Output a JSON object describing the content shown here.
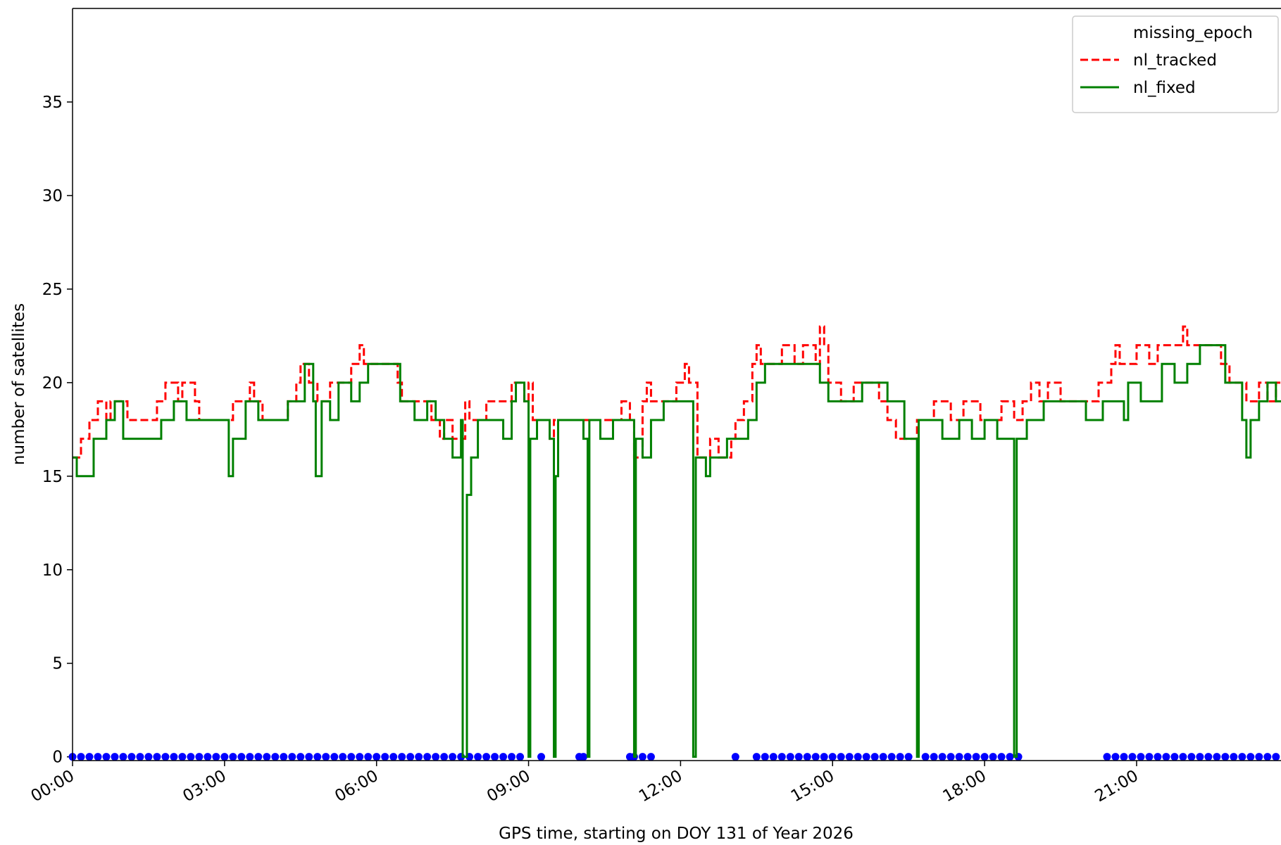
{
  "chart_data": {
    "type": "line",
    "x_label": "GPS time, starting on DOY 131 of Year 2026",
    "y_label": "number of satellites",
    "xlim": [
      "00:00",
      "23:51"
    ],
    "xticks": [
      "00:00",
      "03:00",
      "06:00",
      "09:00",
      "12:00",
      "15:00",
      "18:00",
      "21:00"
    ],
    "ylim": [
      -0.2,
      40
    ],
    "yticks": [
      0,
      5,
      10,
      15,
      20,
      25,
      30,
      35
    ],
    "legend": "upper right",
    "series": [
      {
        "name": "missing_epoch",
        "color": "#0000ff",
        "kind": "scatter",
        "x": [
          "00:00",
          "00:10",
          "00:20",
          "00:30",
          "00:40",
          "00:50",
          "01:00",
          "01:10",
          "01:20",
          "01:30",
          "01:40",
          "01:50",
          "02:00",
          "02:10",
          "02:20",
          "02:30",
          "02:40",
          "02:50",
          "03:00",
          "03:10",
          "03:20",
          "03:30",
          "03:40",
          "03:50",
          "04:00",
          "04:10",
          "04:20",
          "04:30",
          "04:40",
          "04:50",
          "05:00",
          "05:10",
          "05:20",
          "05:30",
          "05:40",
          "05:50",
          "06:00",
          "06:10",
          "06:20",
          "06:30",
          "06:40",
          "06:50",
          "07:00",
          "07:10",
          "07:20",
          "07:30",
          "07:40",
          "07:50",
          "08:00",
          "08:10",
          "08:20",
          "08:30",
          "08:40",
          "08:50",
          "09:15",
          "10:00",
          "10:05",
          "11:00",
          "11:05",
          "11:15",
          "11:25",
          "13:05",
          "13:30",
          "13:40",
          "13:50",
          "14:00",
          "14:10",
          "14:20",
          "14:30",
          "14:40",
          "14:50",
          "15:00",
          "15:10",
          "15:20",
          "15:30",
          "15:40",
          "15:50",
          "16:00",
          "16:10",
          "16:20",
          "16:30",
          "16:50",
          "17:00",
          "17:10",
          "17:20",
          "17:30",
          "17:40",
          "17:50",
          "18:00",
          "18:10",
          "18:20",
          "18:30",
          "18:40",
          "20:25",
          "20:35",
          "20:45",
          "20:55",
          "21:05",
          "21:15",
          "21:25",
          "21:35",
          "21:45",
          "21:55",
          "22:05",
          "22:15",
          "22:25",
          "22:35",
          "22:45",
          "22:55",
          "23:05",
          "23:15",
          "23:25",
          "23:35",
          "23:45"
        ],
        "values": [
          0,
          0,
          0,
          0,
          0,
          0,
          0,
          0,
          0,
          0,
          0,
          0,
          0,
          0,
          0,
          0,
          0,
          0,
          0,
          0,
          0,
          0,
          0,
          0,
          0,
          0,
          0,
          0,
          0,
          0,
          0,
          0,
          0,
          0,
          0,
          0,
          0,
          0,
          0,
          0,
          0,
          0,
          0,
          0,
          0,
          0,
          0,
          0,
          0,
          0,
          0,
          0,
          0,
          0,
          0,
          0,
          0,
          0,
          0,
          0,
          0,
          0,
          0,
          0,
          0,
          0,
          0,
          0,
          0,
          0,
          0,
          0,
          0,
          0,
          0,
          0,
          0,
          0,
          0,
          0,
          0,
          0,
          0,
          0,
          0,
          0,
          0,
          0,
          0,
          0,
          0,
          0,
          0,
          0,
          0,
          0,
          0,
          0,
          0,
          0,
          0,
          0,
          0,
          0,
          0,
          0,
          0,
          0,
          0,
          0,
          0,
          0,
          0,
          0
        ]
      },
      {
        "name": "nl_tracked",
        "color": "#ff0000",
        "kind": "step",
        "dashed": true,
        "x": [
          "00:00",
          "00:10",
          "00:20",
          "00:30",
          "00:40",
          "00:45",
          "01:05",
          "01:40",
          "01:50",
          "02:05",
          "02:10",
          "02:25",
          "02:30",
          "03:00",
          "03:10",
          "03:30",
          "03:35",
          "03:45",
          "04:15",
          "04:25",
          "04:30",
          "04:40",
          "04:50",
          "05:05",
          "05:30",
          "05:40",
          "05:45",
          "06:25",
          "06:30",
          "06:45",
          "07:05",
          "07:15",
          "07:20",
          "07:30",
          "07:45",
          "07:50",
          "08:10",
          "08:40",
          "08:55",
          "09:00",
          "09:05",
          "09:25",
          "09:30",
          "10:00",
          "10:10",
          "10:30",
          "10:50",
          "11:00",
          "11:05",
          "11:15",
          "11:20",
          "11:25",
          "11:55",
          "12:05",
          "12:10",
          "12:20",
          "12:35",
          "12:45",
          "13:00",
          "13:05",
          "13:15",
          "13:25",
          "13:30",
          "13:35",
          "14:00",
          "14:15",
          "14:25",
          "14:40",
          "14:45",
          "14:50",
          "14:55",
          "15:10",
          "15:25",
          "15:40",
          "15:55",
          "16:05",
          "16:15",
          "16:40",
          "16:45",
          "17:00",
          "17:20",
          "17:35",
          "17:55",
          "18:20",
          "18:35",
          "18:45",
          "18:55",
          "19:05",
          "19:15",
          "19:30",
          "20:00",
          "20:15",
          "20:30",
          "20:35",
          "20:40",
          "21:00",
          "21:15",
          "21:25",
          "21:45",
          "21:55",
          "22:00",
          "22:40",
          "22:50",
          "23:10",
          "23:25",
          "23:35",
          "23:45"
        ],
        "values": [
          16,
          17,
          18,
          19,
          18,
          19,
          18,
          19,
          20,
          19,
          20,
          19,
          18,
          18,
          19,
          20,
          19,
          18,
          19,
          20,
          21,
          20,
          19,
          20,
          21,
          22,
          21,
          20,
          19,
          19,
          18,
          17,
          18,
          17,
          19,
          18,
          19,
          20,
          19,
          20,
          18,
          17,
          18,
          18,
          18,
          18,
          19,
          18,
          16,
          19,
          20,
          19,
          20,
          21,
          20,
          16,
          17,
          16,
          17,
          18,
          19,
          21,
          22,
          21,
          22,
          21,
          22,
          21,
          23,
          22,
          20,
          19,
          20,
          20,
          19,
          18,
          17,
          18,
          18,
          19,
          18,
          19,
          18,
          19,
          18,
          19,
          20,
          19,
          20,
          19,
          19,
          20,
          21,
          22,
          21,
          22,
          21,
          22,
          22,
          23,
          22,
          21,
          20,
          19,
          20,
          19,
          20
        ]
      },
      {
        "name": "nl_fixed",
        "color": "#008000",
        "kind": "step",
        "dashed": false,
        "x": [
          "00:00",
          "00:05",
          "00:25",
          "00:40",
          "00:50",
          "01:00",
          "01:45",
          "02:00",
          "02:15",
          "03:00",
          "03:05",
          "03:10",
          "03:25",
          "03:40",
          "04:15",
          "04:35",
          "04:45",
          "04:48",
          "04:55",
          "05:05",
          "05:15",
          "05:30",
          "05:40",
          "05:50",
          "06:28",
          "06:45",
          "07:00",
          "07:10",
          "07:20",
          "07:30",
          "07:40",
          "07:42",
          "07:47",
          "07:52",
          "08:00",
          "08:30",
          "08:40",
          "08:45",
          "08:55",
          "09:00",
          "09:02",
          "09:10",
          "09:25",
          "09:30",
          "09:32",
          "09:35",
          "10:05",
          "10:10",
          "10:12",
          "10:25",
          "10:40",
          "11:05",
          "11:07",
          "11:15",
          "11:25",
          "11:40",
          "12:15",
          "12:18",
          "12:30",
          "12:35",
          "12:55",
          "13:20",
          "13:30",
          "13:40",
          "14:45",
          "14:55",
          "15:35",
          "16:05",
          "16:25",
          "16:40",
          "16:42",
          "17:10",
          "17:30",
          "17:45",
          "18:00",
          "18:15",
          "18:35",
          "18:38",
          "18:50",
          "19:10",
          "20:00",
          "20:20",
          "20:45",
          "20:50",
          "21:05",
          "21:30",
          "21:45",
          "22:00",
          "22:15",
          "22:45",
          "23:05",
          "23:10",
          "23:15",
          "23:25",
          "23:35",
          "23:45"
        ],
        "values": [
          16,
          15,
          17,
          18,
          19,
          17,
          18,
          19,
          18,
          18,
          15,
          17,
          19,
          18,
          19,
          21,
          19,
          15,
          19,
          18,
          20,
          19,
          20,
          21,
          19,
          18,
          19,
          18,
          17,
          16,
          18,
          0,
          14,
          16,
          18,
          17,
          19,
          20,
          19,
          0,
          17,
          18,
          17,
          0,
          15,
          18,
          17,
          0,
          18,
          17,
          18,
          0,
          17,
          16,
          18,
          19,
          0,
          16,
          15,
          16,
          17,
          18,
          20,
          21,
          20,
          19,
          20,
          19,
          17,
          0,
          18,
          17,
          18,
          17,
          18,
          17,
          0,
          17,
          18,
          19,
          18,
          19,
          18,
          20,
          19,
          21,
          20,
          21,
          22,
          20,
          18,
          16,
          18,
          19,
          20,
          19
        ]
      }
    ]
  }
}
